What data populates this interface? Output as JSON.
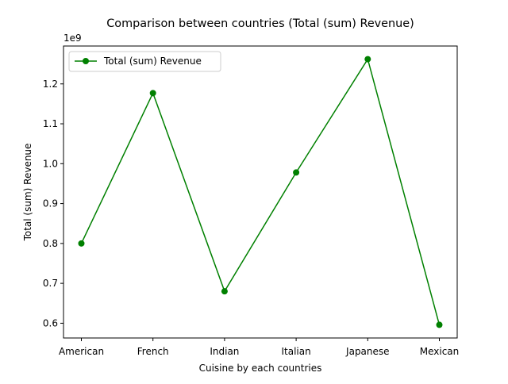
{
  "chart_data": {
    "type": "line",
    "title": "Comparison between countries (Total (sum) Revenue)",
    "xlabel": "Cuisine by each countries",
    "ylabel": "Total (sum) Revenue",
    "y_offset_label": "1e9",
    "categories": [
      "American",
      "French",
      "Indian",
      "Italian",
      "Japanese",
      "Mexican"
    ],
    "series": [
      {
        "name": "Total (sum) Revenue",
        "values": [
          0.8,
          1.177,
          0.68,
          0.978,
          1.262,
          0.596
        ],
        "color": "#008000",
        "marker": "circle"
      }
    ],
    "ylim": [
      0.563,
      1.295
    ],
    "yticks": [
      0.6,
      0.7,
      0.8,
      0.9,
      1.0,
      1.1,
      1.2
    ],
    "ytick_labels": [
      "0.6",
      "0.7",
      "0.8",
      "0.9",
      "1.0",
      "1.1",
      "1.2"
    ],
    "grid": false,
    "legend_position": "top-left"
  }
}
